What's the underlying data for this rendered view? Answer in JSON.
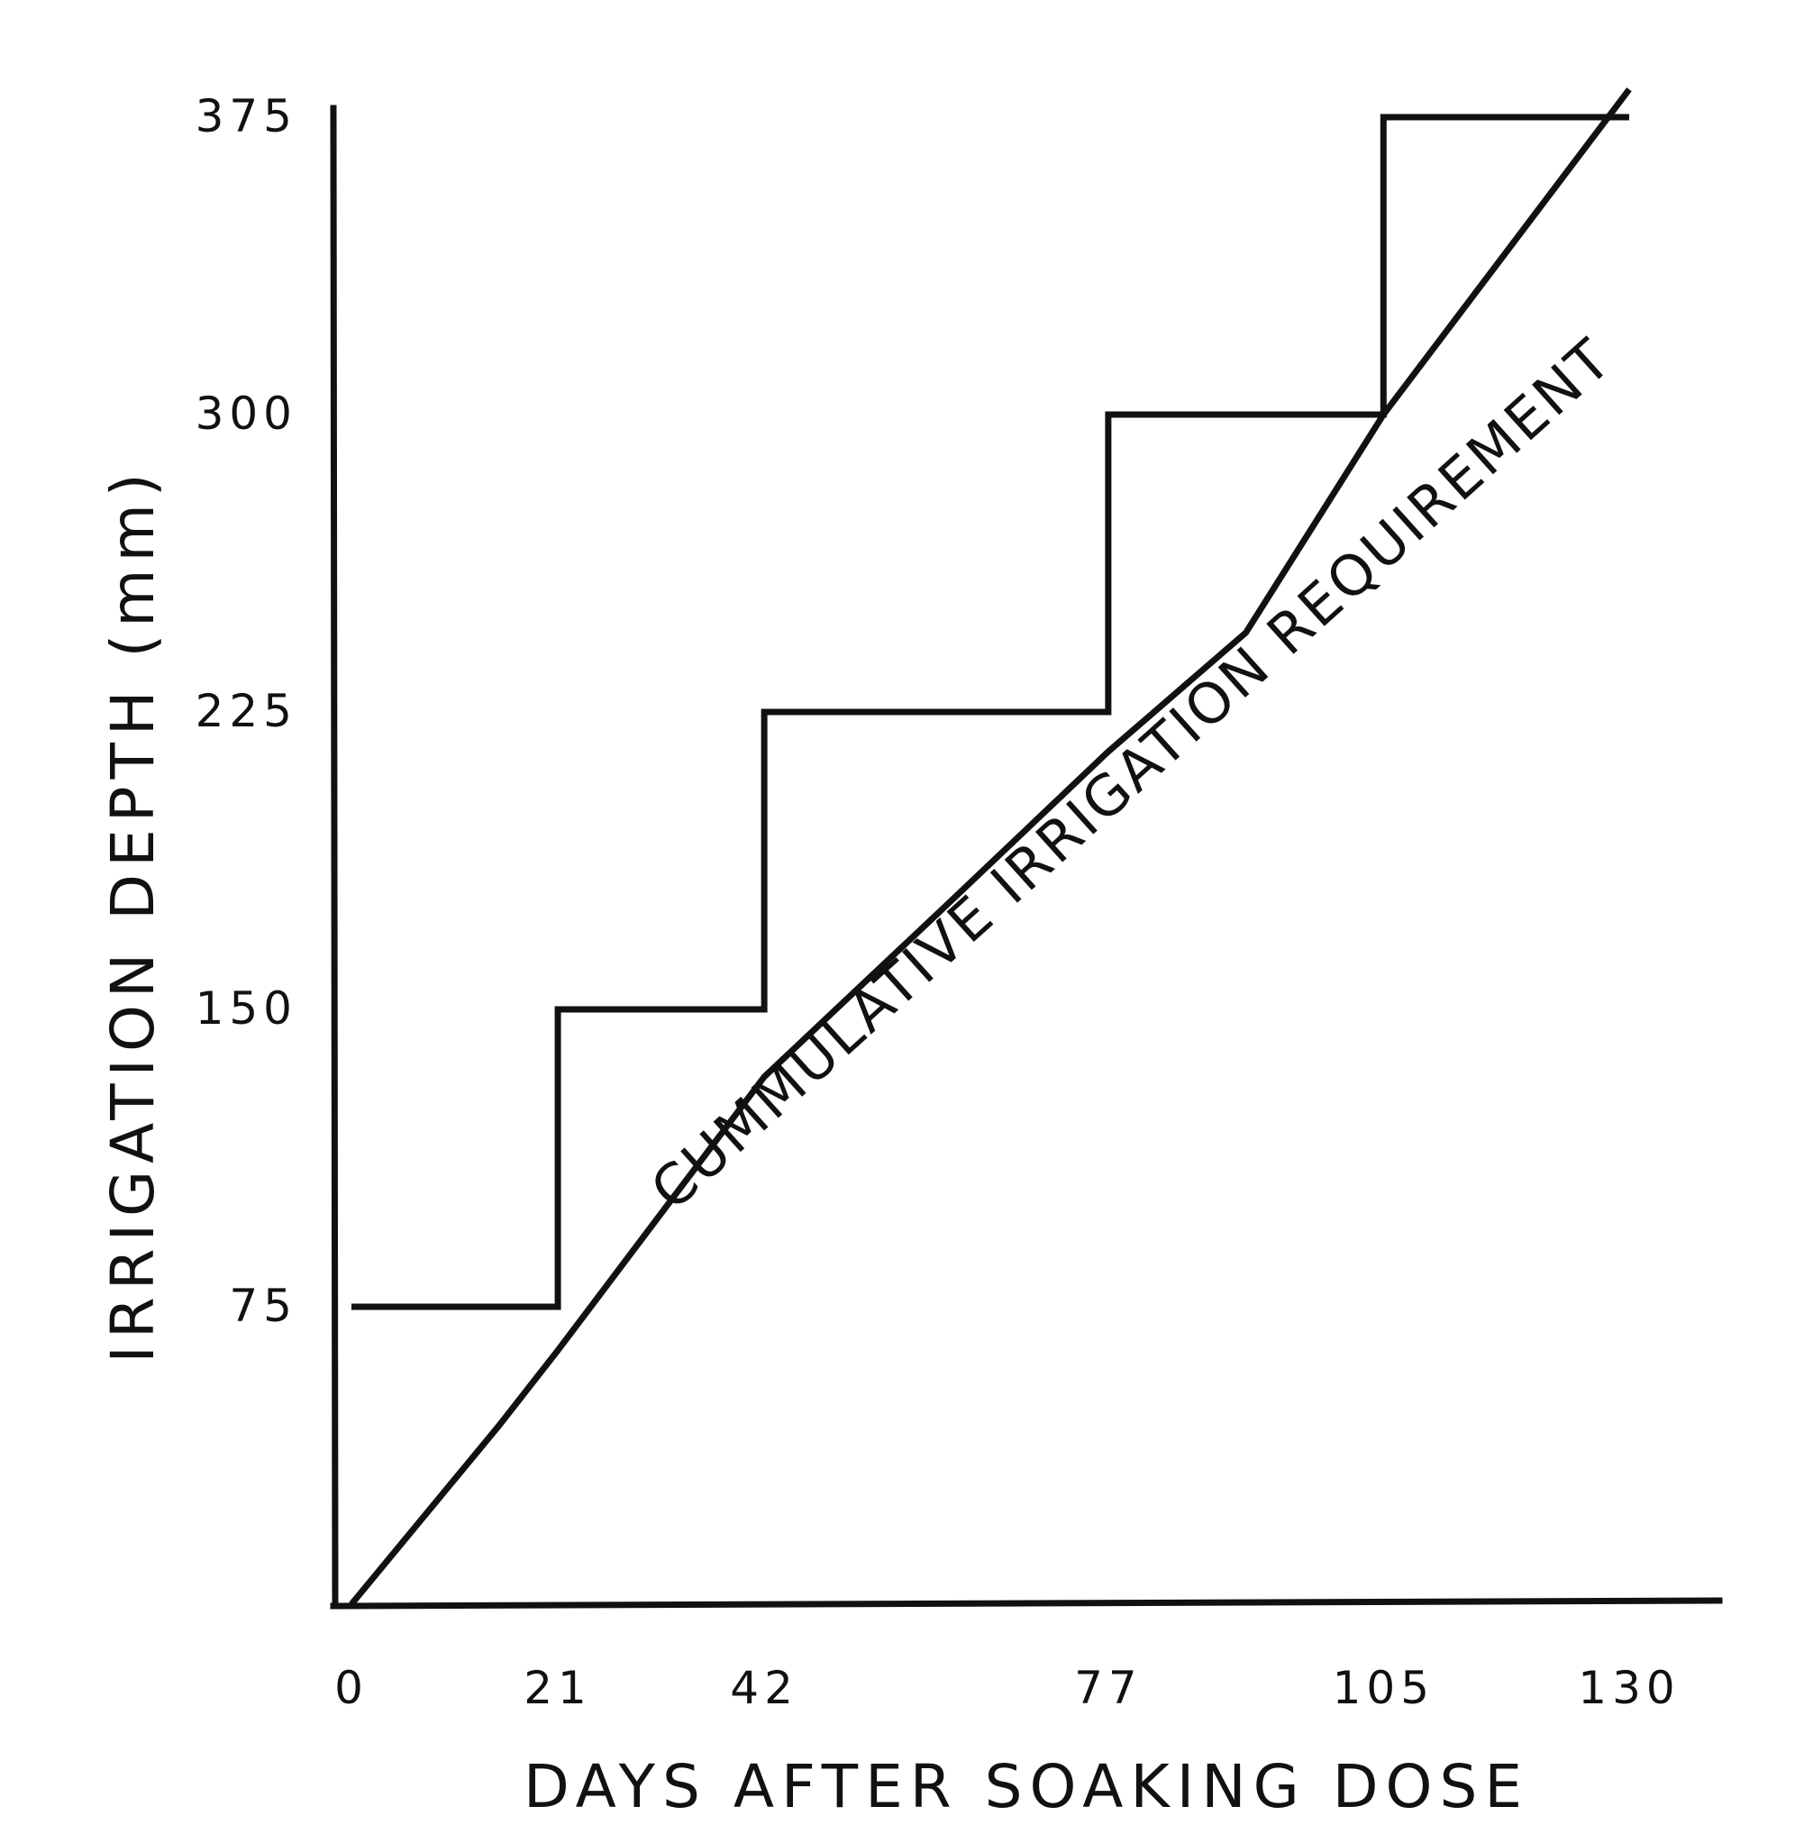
{
  "chart_data": {
    "type": "line",
    "title": "",
    "xlabel": "DAYS AFTER SOAKING DOSE",
    "ylabel": "IRRIGATION DEPTH (mm)",
    "xlim": [
      0,
      130
    ],
    "ylim": [
      0,
      375
    ],
    "x_ticks": [
      0,
      21,
      42,
      77,
      105,
      130
    ],
    "y_ticks": [
      75,
      150,
      225,
      300,
      375
    ],
    "grid": false,
    "legend": "none",
    "series": [
      {
        "name": "",
        "style": "step",
        "points": [
          [
            0,
            75
          ],
          [
            21,
            75
          ],
          [
            21,
            150
          ],
          [
            42,
            150
          ],
          [
            42,
            225
          ],
          [
            77,
            225
          ],
          [
            77,
            300
          ],
          [
            105,
            300
          ],
          [
            105,
            375
          ],
          [
            130,
            375
          ]
        ]
      },
      {
        "name": "",
        "style": "line",
        "points": [
          [
            0,
            0
          ],
          [
            15,
            45
          ],
          [
            21,
            64
          ],
          [
            42,
            133
          ],
          [
            60,
            175
          ],
          [
            77,
            215
          ],
          [
            91,
            245
          ],
          [
            105,
            300
          ],
          [
            130,
            382
          ]
        ]
      }
    ],
    "annotations": [
      {
        "text": "CUMMULATIVE IRRIGATION REQUIREMENT",
        "x": 77,
        "y": 208
      }
    ]
  }
}
